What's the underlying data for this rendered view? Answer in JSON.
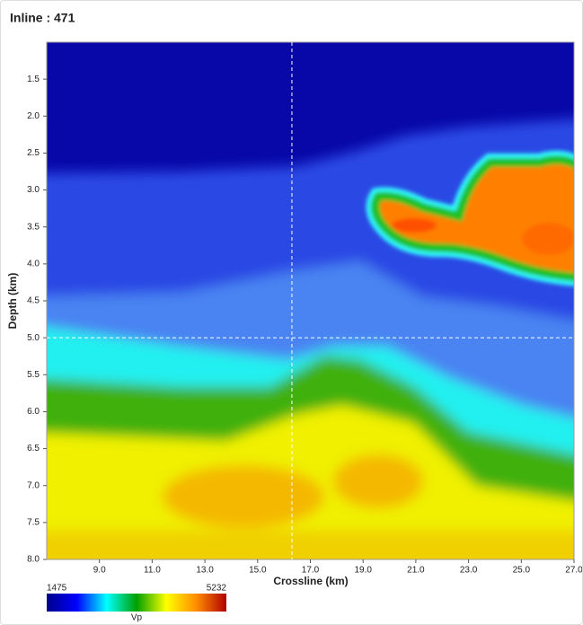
{
  "chart_data": {
    "type": "heatmap",
    "title": "Inline : 471",
    "xlabel": "Crossline (km)",
    "ylabel": "Depth (km)",
    "xlim": [
      7.0,
      27.0
    ],
    "ylim": [
      8.0,
      1.0
    ],
    "xticks": [
      {
        "value": 9,
        "label": "9.0"
      },
      {
        "value": 11,
        "label": "11.0"
      },
      {
        "value": 13,
        "label": "13.0"
      },
      {
        "value": 15,
        "label": "15.0"
      },
      {
        "value": 17,
        "label": "17.0"
      },
      {
        "value": 19,
        "label": "19.0"
      },
      {
        "value": 21,
        "label": "21.0"
      },
      {
        "value": 23,
        "label": "23.0"
      },
      {
        "value": 25,
        "label": "25.0"
      },
      {
        "value": 27,
        "label": "27.0"
      }
    ],
    "yticks": [
      1.5,
      {
        "value": 2,
        "label": "2.0"
      },
      2.5,
      {
        "value": 3,
        "label": "3.0"
      },
      3.5,
      {
        "value": 4,
        "label": "4.0"
      },
      4.5,
      {
        "value": 5,
        "label": "5.0"
      },
      5.5,
      {
        "value": 6,
        "label": "6.0"
      },
      6.5,
      {
        "value": 7,
        "label": "7.0"
      },
      7.5,
      {
        "value": 8,
        "label": "8.0"
      }
    ],
    "crosshair": {
      "x": 16.3,
      "y": 5.0
    },
    "colorbar": {
      "min": 1475,
      "max": 5232,
      "label": "Vp",
      "colors": [
        "#00008b",
        "#0000ff",
        "#00ffff",
        "#00a000",
        "#ffff00",
        "#ff8c00",
        "#b00000"
      ]
    }
  }
}
